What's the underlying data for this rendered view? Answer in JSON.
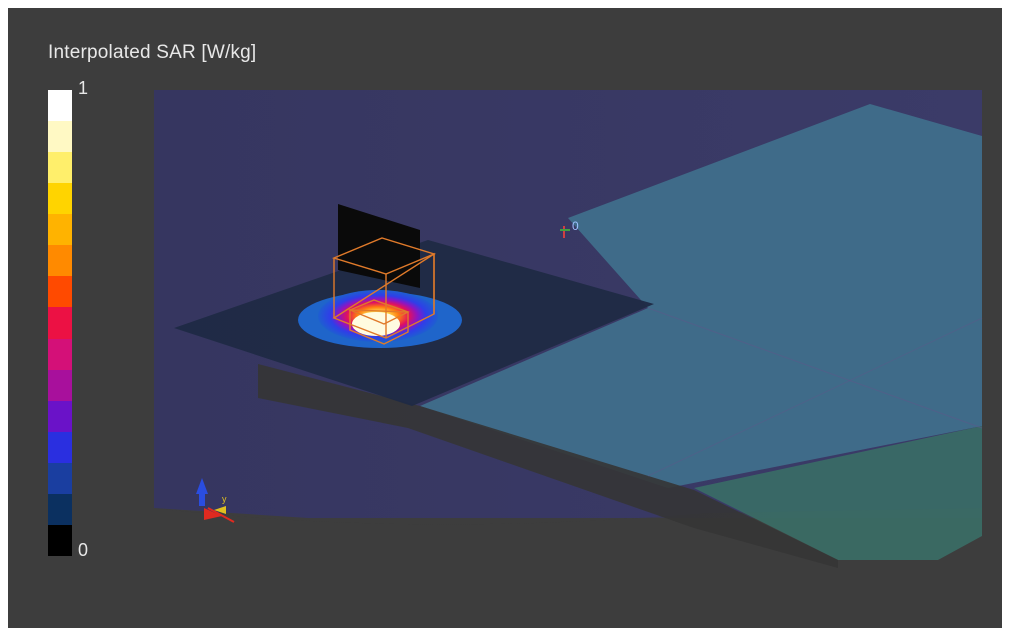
{
  "legend": {
    "title": "Interpolated SAR [W/kg]",
    "max_label": "1",
    "min_label": "0",
    "scale_min": 0,
    "scale_max": 1,
    "colors_top_to_bottom": [
      "#ffffff",
      "#fff9c4",
      "#ffef6b",
      "#ffd400",
      "#ffb300",
      "#ff8a00",
      "#ff4a00",
      "#ec1144",
      "#d41078",
      "#a8109c",
      "#6a12c8",
      "#2a2fe0",
      "#1a3ea0",
      "#0b3060",
      "#000000"
    ]
  },
  "view": {
    "background": "#3d3d3d",
    "surface_color": "#3a3a66",
    "slab_color": "#3f6f8a",
    "probe_marker_label": "0",
    "axes_triad": [
      "x",
      "y",
      "z"
    ]
  }
}
